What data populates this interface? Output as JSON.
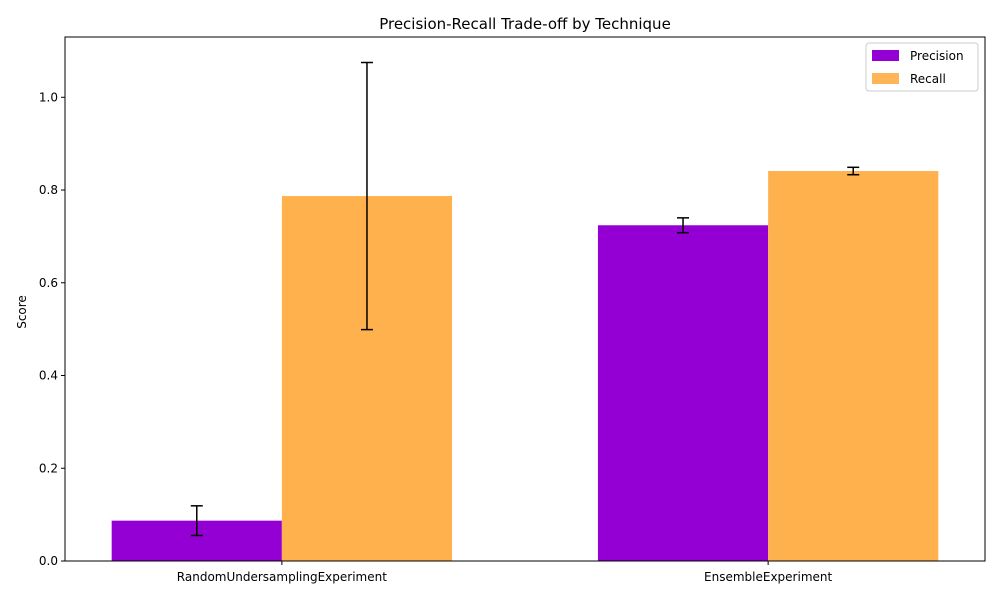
{
  "chart_data": {
    "type": "bar",
    "title": "Precision-Recall Trade-off by Technique",
    "xlabel": "",
    "ylabel": "Score",
    "categories": [
      "RandomUndersamplingExperiment",
      "EnsembleExperiment"
    ],
    "series": [
      {
        "name": "Precision",
        "color": "#9400D3",
        "values": [
          0.087,
          0.724
        ],
        "errors": [
          0.032,
          0.016
        ]
      },
      {
        "name": "Recall",
        "color": "#FFB14E",
        "values": [
          0.787,
          0.841
        ],
        "errors": [
          0.288,
          0.008
        ]
      }
    ],
    "yticks": [
      0.0,
      0.2,
      0.4,
      0.6,
      0.8,
      1.0
    ],
    "ylim": [
      0,
      1.13
    ],
    "legend_position": "top-right",
    "grid": false
  }
}
